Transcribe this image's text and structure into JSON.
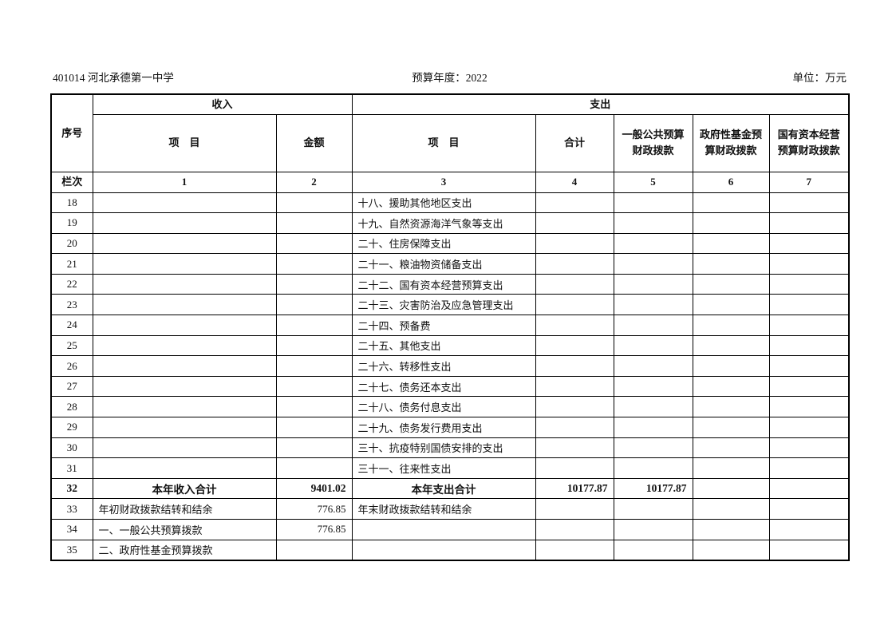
{
  "header": {
    "org": "401014 河北承德第一中学",
    "budget_year": "预算年度：2022",
    "unit": "单位：万元"
  },
  "table": {
    "group_headers": {
      "seq": "序号",
      "income": "收入",
      "expense": "支出"
    },
    "col_headers": {
      "income_item": "项　目",
      "income_amount": "金额",
      "expense_item": "项　目",
      "total": "合计",
      "general_public": "一般公共预算财政拨款",
      "gov_fund": "政府性基金预算财政拨款",
      "state_capital": "国有资本经营预算财政拨款"
    },
    "lanci": {
      "label": "栏次",
      "cols": [
        "1",
        "2",
        "3",
        "4",
        "5",
        "6",
        "7"
      ]
    },
    "rows": [
      {
        "seq": "18",
        "income_item": "",
        "income_amount": "",
        "expense_item": "十八、援助其他地区支出",
        "total": "",
        "general_public": "",
        "gov_fund": "",
        "state_capital": "",
        "emphasis": false
      },
      {
        "seq": "19",
        "income_item": "",
        "income_amount": "",
        "expense_item": "十九、自然资源海洋气象等支出",
        "total": "",
        "general_public": "",
        "gov_fund": "",
        "state_capital": "",
        "emphasis": false
      },
      {
        "seq": "20",
        "income_item": "",
        "income_amount": "",
        "expense_item": "二十、住房保障支出",
        "total": "",
        "general_public": "",
        "gov_fund": "",
        "state_capital": "",
        "emphasis": false
      },
      {
        "seq": "21",
        "income_item": "",
        "income_amount": "",
        "expense_item": "二十一、粮油物资储备支出",
        "total": "",
        "general_public": "",
        "gov_fund": "",
        "state_capital": "",
        "emphasis": false
      },
      {
        "seq": "22",
        "income_item": "",
        "income_amount": "",
        "expense_item": "二十二、国有资本经营预算支出",
        "total": "",
        "general_public": "",
        "gov_fund": "",
        "state_capital": "",
        "emphasis": false
      },
      {
        "seq": "23",
        "income_item": "",
        "income_amount": "",
        "expense_item": "二十三、灾害防治及应急管理支出",
        "total": "",
        "general_public": "",
        "gov_fund": "",
        "state_capital": "",
        "emphasis": false
      },
      {
        "seq": "24",
        "income_item": "",
        "income_amount": "",
        "expense_item": "二十四、预备费",
        "total": "",
        "general_public": "",
        "gov_fund": "",
        "state_capital": "",
        "emphasis": false
      },
      {
        "seq": "25",
        "income_item": "",
        "income_amount": "",
        "expense_item": "二十五、其他支出",
        "total": "",
        "general_public": "",
        "gov_fund": "",
        "state_capital": "",
        "emphasis": false
      },
      {
        "seq": "26",
        "income_item": "",
        "income_amount": "",
        "expense_item": "二十六、转移性支出",
        "total": "",
        "general_public": "",
        "gov_fund": "",
        "state_capital": "",
        "emphasis": false
      },
      {
        "seq": "27",
        "income_item": "",
        "income_amount": "",
        "expense_item": "二十七、债务还本支出",
        "total": "",
        "general_public": "",
        "gov_fund": "",
        "state_capital": "",
        "emphasis": false
      },
      {
        "seq": "28",
        "income_item": "",
        "income_amount": "",
        "expense_item": "二十八、债务付息支出",
        "total": "",
        "general_public": "",
        "gov_fund": "",
        "state_capital": "",
        "emphasis": false
      },
      {
        "seq": "29",
        "income_item": "",
        "income_amount": "",
        "expense_item": "二十九、债务发行费用支出",
        "total": "",
        "general_public": "",
        "gov_fund": "",
        "state_capital": "",
        "emphasis": false
      },
      {
        "seq": "30",
        "income_item": "",
        "income_amount": "",
        "expense_item": "三十、抗疫特别国债安排的支出",
        "total": "",
        "general_public": "",
        "gov_fund": "",
        "state_capital": "",
        "emphasis": false
      },
      {
        "seq": "31",
        "income_item": "",
        "income_amount": "",
        "expense_item": "三十一、往来性支出",
        "total": "",
        "general_public": "",
        "gov_fund": "",
        "state_capital": "",
        "emphasis": false
      },
      {
        "seq": "32",
        "income_item": "本年收入合计",
        "income_amount": "9401.02",
        "expense_item": "本年支出合计",
        "total": "10177.87",
        "general_public": "10177.87",
        "gov_fund": "",
        "state_capital": "",
        "emphasis": true
      },
      {
        "seq": "33",
        "income_item": "年初财政拨款结转和结余",
        "income_amount": "776.85",
        "expense_item": "年末财政拨款结转和结余",
        "total": "",
        "general_public": "",
        "gov_fund": "",
        "state_capital": "",
        "emphasis": false
      },
      {
        "seq": "34",
        "income_item": "一、一般公共预算拨款",
        "income_amount": "776.85",
        "expense_item": "",
        "total": "",
        "general_public": "",
        "gov_fund": "",
        "state_capital": "",
        "emphasis": false
      },
      {
        "seq": "35",
        "income_item": "二、政府性基金预算拨款",
        "income_amount": "",
        "expense_item": "",
        "total": "",
        "general_public": "",
        "gov_fund": "",
        "state_capital": "",
        "emphasis": false
      }
    ]
  }
}
